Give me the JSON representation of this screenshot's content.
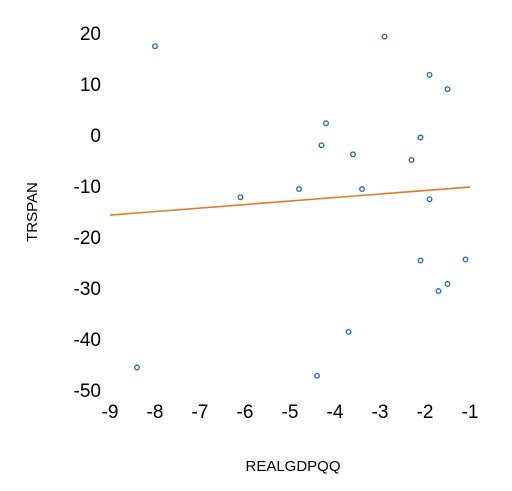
{
  "chart_data": {
    "type": "scatter",
    "title": "",
    "xlabel": "REALGDPQQ",
    "ylabel": "TRSPAN",
    "xlim": [
      -9,
      -1
    ],
    "ylim": [
      -50,
      20
    ],
    "x_ticks": [
      -9,
      -8,
      -7,
      -6,
      -5,
      -4,
      -3,
      -2,
      -1
    ],
    "y_ticks": [
      -50,
      -40,
      -30,
      -20,
      -10,
      0,
      10,
      20
    ],
    "grid": false,
    "legend": "none",
    "series": [
      {
        "kind": "points",
        "color": "#2e6db4",
        "marker": "hollow-circle",
        "points": [
          [
            -8.4,
            -45.6
          ],
          [
            -8.0,
            17.4
          ],
          [
            -6.1,
            -12.2
          ],
          [
            -4.8,
            -10.6
          ],
          [
            -4.4,
            -47.2
          ],
          [
            -4.3,
            -2.0
          ],
          [
            -4.2,
            2.3
          ],
          [
            -3.7,
            -38.6
          ],
          [
            -3.6,
            -3.8
          ],
          [
            -3.4,
            -10.6
          ],
          [
            -2.9,
            19.3
          ],
          [
            -2.3,
            -4.9
          ],
          [
            -2.1,
            -0.5
          ],
          [
            -2.1,
            -24.6
          ],
          [
            -1.9,
            11.8
          ],
          [
            -1.9,
            -12.6
          ],
          [
            -1.7,
            -30.6
          ],
          [
            -1.5,
            9.0
          ],
          [
            -1.5,
            -29.2
          ],
          [
            -1.1,
            -24.4
          ]
        ]
      },
      {
        "kind": "trendline",
        "color": "#e07b24",
        "x": [
          -9,
          -1
        ],
        "y": [
          -15.7,
          -10.2
        ]
      }
    ]
  }
}
